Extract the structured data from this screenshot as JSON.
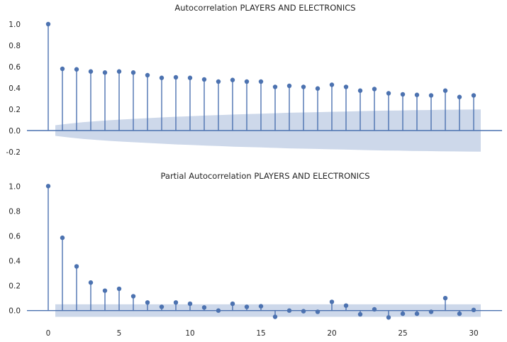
{
  "colors": {
    "marker": "#4c72b0",
    "band": "#cdd8ea",
    "axis": "#4c72b0",
    "background": "#ffffff"
  },
  "chart_data": [
    {
      "type": "stem",
      "title": "Autocorrelation PLAYERS AND ELECTRONICS",
      "xlabel": "",
      "ylabel": "",
      "xlim": [
        -1.5,
        32
      ],
      "ylim": [
        -0.22,
        1.08
      ],
      "yticks": [
        -0.2,
        0.0,
        0.2,
        0.4,
        0.6,
        0.8,
        1.0
      ],
      "xticks": [],
      "lags": [
        0,
        1,
        2,
        3,
        4,
        5,
        6,
        7,
        8,
        9,
        10,
        11,
        12,
        13,
        14,
        15,
        16,
        17,
        18,
        19,
        20,
        21,
        22,
        23,
        24,
        25,
        26,
        27,
        28,
        29,
        30
      ],
      "values": [
        1.0,
        0.58,
        0.575,
        0.555,
        0.545,
        0.555,
        0.545,
        0.52,
        0.495,
        0.5,
        0.495,
        0.48,
        0.46,
        0.475,
        0.46,
        0.46,
        0.41,
        0.42,
        0.41,
        0.395,
        0.43,
        0.41,
        0.375,
        0.39,
        0.35,
        0.34,
        0.335,
        0.33,
        0.375,
        0.315,
        0.33
      ],
      "confidence_band": {
        "x_start": 0.5,
        "x_end": 30.5,
        "lower": [
          -0.05,
          -0.065,
          -0.078,
          -0.088,
          -0.097,
          -0.105,
          -0.112,
          -0.119,
          -0.125,
          -0.131,
          -0.136,
          -0.141,
          -0.146,
          -0.151,
          -0.155,
          -0.159,
          -0.163,
          -0.167,
          -0.17,
          -0.173,
          -0.176,
          -0.179,
          -0.182,
          -0.185,
          -0.187,
          -0.189,
          -0.191,
          -0.193,
          -0.195,
          -0.196,
          -0.197,
          -0.198
        ],
        "upper": [
          0.05,
          0.065,
          0.078,
          0.088,
          0.097,
          0.105,
          0.112,
          0.119,
          0.125,
          0.131,
          0.136,
          0.141,
          0.146,
          0.151,
          0.155,
          0.159,
          0.163,
          0.167,
          0.17,
          0.173,
          0.176,
          0.179,
          0.182,
          0.185,
          0.187,
          0.189,
          0.191,
          0.193,
          0.195,
          0.196,
          0.197,
          0.198
        ]
      }
    },
    {
      "type": "stem",
      "title": "Partial Autocorrelation PLAYERS AND ELECTRONICS",
      "xlabel": "",
      "ylabel": "",
      "xlim": [
        -1.5,
        32
      ],
      "ylim": [
        -0.07,
        1.03
      ],
      "yticks": [
        0.0,
        0.2,
        0.4,
        0.6,
        0.8,
        1.0
      ],
      "xticks": [
        0,
        5,
        10,
        15,
        20,
        25,
        30
      ],
      "lags": [
        0,
        1,
        2,
        3,
        4,
        5,
        6,
        7,
        8,
        9,
        10,
        11,
        12,
        13,
        14,
        15,
        16,
        17,
        18,
        19,
        20,
        21,
        22,
        23,
        24,
        25,
        26,
        27,
        28,
        29,
        30
      ],
      "values": [
        1.0,
        0.585,
        0.355,
        0.225,
        0.16,
        0.175,
        0.115,
        0.065,
        0.03,
        0.065,
        0.055,
        0.025,
        0.0,
        0.055,
        0.03,
        0.035,
        -0.05,
        0.0,
        -0.005,
        -0.01,
        0.07,
        0.04,
        -0.03,
        0.01,
        -0.055,
        -0.025,
        -0.025,
        -0.01,
        0.1,
        -0.025,
        0.005
      ],
      "confidence_band": {
        "x_start": 0.5,
        "x_end": 30.5,
        "lower": [
          -0.05,
          -0.05
        ],
        "upper": [
          0.05,
          0.05
        ]
      }
    }
  ]
}
